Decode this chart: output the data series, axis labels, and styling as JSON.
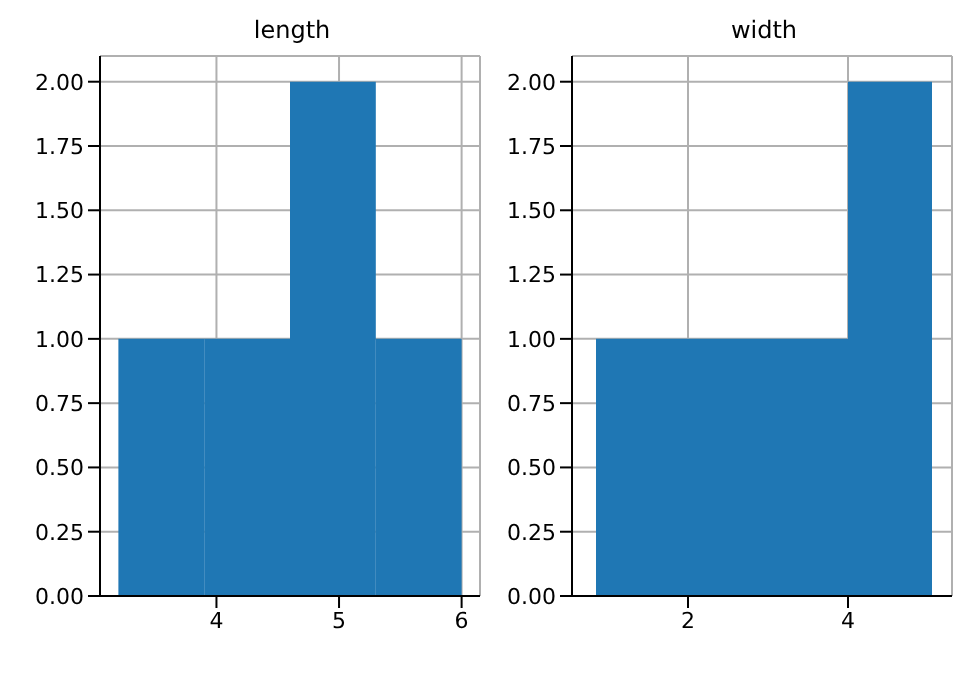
{
  "chart_data": [
    {
      "type": "histogram",
      "title": "length",
      "bins": [
        3.2,
        3.9,
        4.6,
        5.3,
        6.0
      ],
      "values": [
        1,
        1,
        2,
        1
      ],
      "color": "#1f77b4",
      "xlim": [
        3.05,
        6.15
      ],
      "xticks": [
        4,
        5,
        6
      ],
      "ylim": [
        0,
        2.1
      ],
      "yticks": [
        {
          "value": 0,
          "label": "0.00"
        },
        {
          "value": 0.25,
          "label": "0.25"
        },
        {
          "value": 0.5,
          "label": "0.50"
        },
        {
          "value": 0.75,
          "label": "0.75"
        },
        {
          "value": 1,
          "label": "1.00"
        },
        {
          "value": 1.25,
          "label": "1.25"
        },
        {
          "value": 1.5,
          "label": "1.50"
        },
        {
          "value": 1.75,
          "label": "1.75"
        },
        {
          "value": 2,
          "label": "2.00"
        }
      ],
      "grid": true
    },
    {
      "type": "histogram",
      "title": "width",
      "bins": [
        0.85,
        1.9,
        2.95,
        4.0,
        5.05
      ],
      "values": [
        1,
        1,
        1,
        2
      ],
      "color": "#1f77b4",
      "xlim": [
        0.55,
        5.3
      ],
      "xticks": [
        2,
        4
      ],
      "ylim": [
        0,
        2.1
      ],
      "yticks": [
        {
          "value": 0,
          "label": "0.00"
        },
        {
          "value": 0.25,
          "label": "0.25"
        },
        {
          "value": 0.5,
          "label": "0.50"
        },
        {
          "value": 0.75,
          "label": "0.75"
        },
        {
          "value": 1,
          "label": "1.00"
        },
        {
          "value": 1.25,
          "label": "1.25"
        },
        {
          "value": 1.5,
          "label": "1.50"
        },
        {
          "value": 1.75,
          "label": "1.75"
        },
        {
          "value": 2,
          "label": "2.00"
        }
      ],
      "grid": true
    }
  ]
}
